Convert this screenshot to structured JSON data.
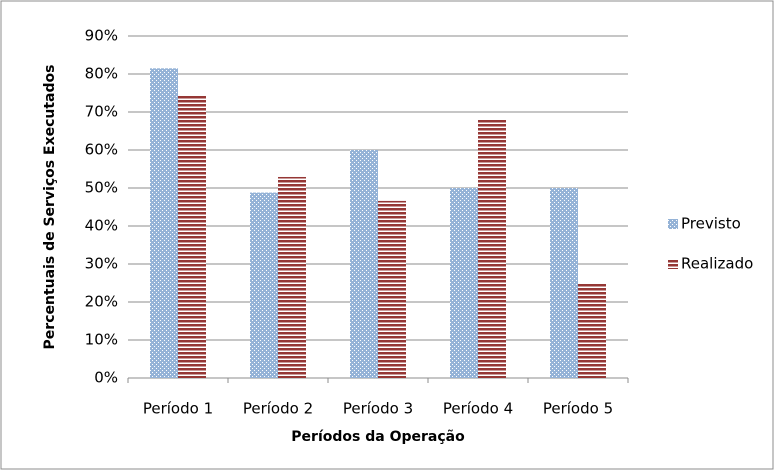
{
  "chart_data": {
    "type": "bar",
    "categories": [
      "Período 1",
      "Período 2",
      "Período 3",
      "Período 4",
      "Período 5"
    ],
    "series": [
      {
        "name": "Previsto",
        "color": "#95b3d7",
        "values": [
          81.5,
          48.8,
          60,
          50,
          50
        ]
      },
      {
        "name": "Realizado",
        "color": "#953735",
        "values": [
          74.3,
          52.9,
          46.6,
          68.2,
          24.8
        ]
      }
    ],
    "ylim": [
      0,
      90
    ],
    "yticks": [
      {
        "value": 0,
        "label": "0%"
      },
      {
        "value": 10,
        "label": "10%"
      },
      {
        "value": 20,
        "label": "20%"
      },
      {
        "value": 30,
        "label": "30%"
      },
      {
        "value": 40,
        "label": "40%"
      },
      {
        "value": 50,
        "label": "50%"
      },
      {
        "value": 60,
        "label": "60%"
      },
      {
        "value": 70,
        "label": "70%"
      },
      {
        "value": 80,
        "label": "80%"
      },
      {
        "value": 90,
        "label": "90%"
      }
    ],
    "xlabel": "Períodos da Operação",
    "ylabel": "Percentuais de Serviços Executados",
    "grid": true,
    "legend": "right"
  }
}
